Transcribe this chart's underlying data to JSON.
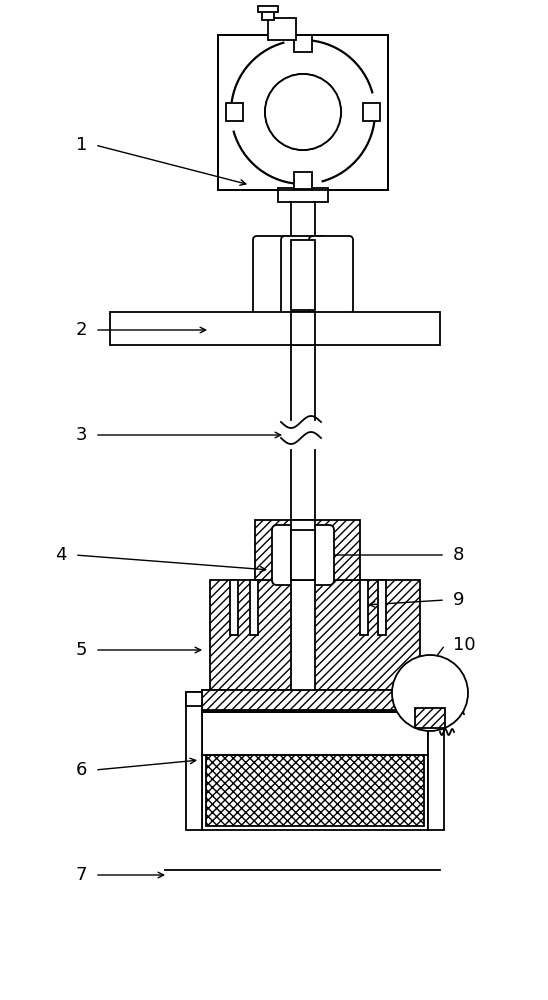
{
  "figure_width": 5.48,
  "figure_height": 10.0,
  "dpi": 100,
  "background_color": "#ffffff",
  "line_color": "#000000"
}
